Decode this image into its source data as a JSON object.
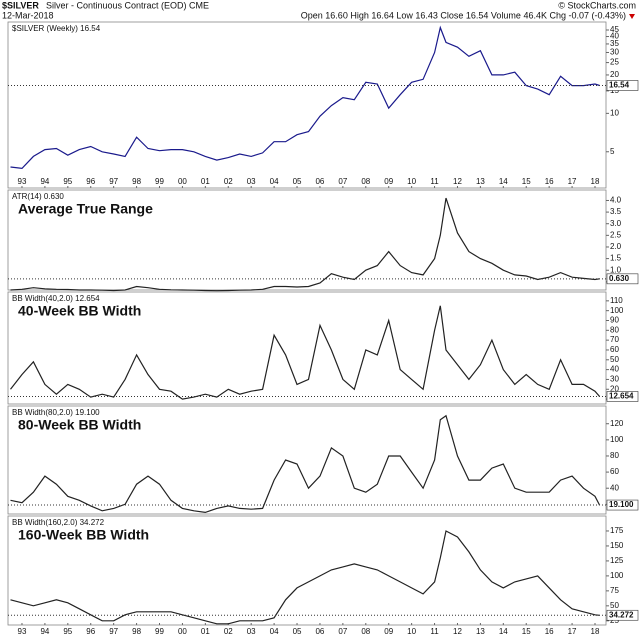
{
  "header": {
    "symbol": "$SILVER",
    "name": "Silver - Continuous Contract (EOD) CME",
    "date": "12-Mar-2018",
    "quote": "Open 16.60 High 16.64 Low 16.43 Close 16.54 Volume 46.4K Chg -0.07 (-0.43%)",
    "source": "© StockCharts.com"
  },
  "chart_data": [
    {
      "type": "line",
      "subtitle": "$SILVER (Weekly) 16.54",
      "last_label": "16.54",
      "log_scale": true,
      "color": "#1a1a8c",
      "xlim": [
        1992.39,
        2018.48
      ],
      "ylim": [
        2.6,
        52
      ],
      "yticks": [
        5,
        10,
        15,
        20,
        25,
        30,
        35,
        40,
        45
      ],
      "xticks": [
        {
          "value": 1993,
          "label": "93"
        },
        {
          "value": 1994,
          "label": "94"
        },
        {
          "value": 1995,
          "label": "95"
        },
        {
          "value": 1996,
          "label": "96"
        },
        {
          "value": 1997,
          "label": "97"
        },
        {
          "value": 1998,
          "label": "98"
        },
        {
          "value": 1999,
          "label": "99"
        },
        {
          "value": 2000,
          "label": "00"
        },
        {
          "value": 2001,
          "label": "01"
        },
        {
          "value": 2002,
          "label": "02"
        },
        {
          "value": 2003,
          "label": "03"
        },
        {
          "value": 2004,
          "label": "04"
        },
        {
          "value": 2005,
          "label": "05"
        },
        {
          "value": 2006,
          "label": "06"
        },
        {
          "value": 2007,
          "label": "07"
        },
        {
          "value": 2008,
          "label": "08"
        },
        {
          "value": 2009,
          "label": "09"
        },
        {
          "value": 2010,
          "label": "10"
        },
        {
          "value": 2011,
          "label": "11"
        },
        {
          "value": 2012,
          "label": "12"
        },
        {
          "value": 2013,
          "label": "13"
        },
        {
          "value": 2014,
          "label": "14"
        },
        {
          "value": 2015,
          "label": "15"
        },
        {
          "value": 2016,
          "label": "16"
        },
        {
          "value": 2017,
          "label": "17"
        },
        {
          "value": 2018,
          "label": "18"
        }
      ],
      "x": [
        1992.5,
        1993,
        1993.5,
        1994,
        1994.5,
        1995,
        1995.5,
        1996,
        1996.5,
        1997,
        1997.5,
        1998,
        1998.5,
        1999,
        1999.5,
        2000,
        2000.5,
        2001,
        2001.5,
        2002,
        2002.5,
        2003,
        2003.5,
        2004,
        2004.5,
        2005,
        2005.5,
        2006,
        2006.5,
        2007,
        2007.5,
        2008,
        2008.5,
        2009,
        2009.5,
        2010,
        2010.5,
        2011,
        2011.25,
        2011.5,
        2012,
        2012.5,
        2013,
        2013.5,
        2014,
        2014.5,
        2015,
        2015.5,
        2016,
        2016.5,
        2017,
        2017.5,
        2018,
        2018.2
      ],
      "values": [
        3.8,
        3.7,
        4.6,
        5.2,
        5.3,
        4.7,
        5.2,
        5.5,
        5.0,
        4.8,
        4.6,
        6.5,
        5.3,
        5.1,
        5.2,
        5.2,
        5.0,
        4.6,
        4.3,
        4.5,
        4.8,
        4.6,
        4.9,
        6.0,
        6.0,
        6.8,
        7.2,
        9.5,
        11.5,
        13.3,
        12.8,
        17.5,
        17.0,
        11.0,
        14.0,
        17.5,
        18.5,
        30,
        47,
        36,
        33,
        28,
        31,
        20,
        20,
        21,
        16.5,
        15.5,
        14,
        19.5,
        16.5,
        16.5,
        17,
        16.54
      ]
    },
    {
      "type": "line",
      "title": "Average True Range",
      "subtitle": "ATR(14) 0.630",
      "last_label": "0.630",
      "color": "#222",
      "xlim": [
        1992.39,
        2018.48
      ],
      "ylim": [
        0.15,
        4.45
      ],
      "yticks": [
        0.5,
        {
          "value": 1,
          "label": "1.0"
        },
        1.5,
        {
          "value": 2,
          "label": "2.0"
        },
        2.5,
        {
          "value": 3,
          "label": "3.0"
        },
        3.5,
        {
          "value": 4,
          "label": "4.0"
        }
      ],
      "x": [
        1992.5,
        1993,
        1993.5,
        1994,
        1994.5,
        1995,
        1995.5,
        1996,
        1996.5,
        1997,
        1997.5,
        1998,
        1998.5,
        1999,
        1999.5,
        2000,
        2000.5,
        2001,
        2001.5,
        2002,
        2002.5,
        2003,
        2003.5,
        2004,
        2004.5,
        2005,
        2005.5,
        2006,
        2006.5,
        2007,
        2007.5,
        2008,
        2008.5,
        2009,
        2009.5,
        2010,
        2010.5,
        2011,
        2011.25,
        2011.5,
        2012,
        2012.5,
        2013,
        2013.5,
        2014,
        2014.5,
        2015,
        2015.5,
        2016,
        2016.5,
        2017,
        2017.5,
        2018,
        2018.2
      ],
      "values": [
        0.15,
        0.18,
        0.25,
        0.2,
        0.18,
        0.17,
        0.15,
        0.15,
        0.14,
        0.13,
        0.15,
        0.3,
        0.25,
        0.18,
        0.16,
        0.15,
        0.14,
        0.13,
        0.12,
        0.13,
        0.14,
        0.15,
        0.18,
        0.3,
        0.3,
        0.28,
        0.3,
        0.45,
        0.85,
        0.7,
        0.6,
        1.0,
        1.2,
        1.8,
        1.2,
        0.9,
        0.8,
        1.5,
        2.5,
        4.1,
        2.6,
        1.8,
        1.5,
        1.3,
        1.0,
        0.8,
        0.75,
        0.6,
        0.7,
        0.9,
        0.7,
        0.65,
        0.6,
        0.63
      ]
    },
    {
      "type": "line",
      "title": "40-Week BB Width",
      "subtitle": "BB Width(40,2.0) 12.654",
      "last_label": "12.654",
      "color": "#222",
      "xlim": [
        1992.39,
        2018.48
      ],
      "ylim": [
        5,
        119
      ],
      "yticks": [
        10,
        20,
        30,
        40,
        50,
        60,
        70,
        80,
        90,
        100,
        110
      ],
      "x": [
        1992.5,
        1993,
        1993.5,
        1994,
        1994.5,
        1995,
        1995.5,
        1996,
        1996.5,
        1997,
        1997.5,
        1998,
        1998.5,
        1999,
        1999.5,
        2000,
        2000.5,
        2001,
        2001.5,
        2002,
        2002.5,
        2003,
        2003.5,
        2004,
        2004.5,
        2005,
        2005.5,
        2006,
        2006.5,
        2007,
        2007.5,
        2008,
        2008.5,
        2009,
        2009.5,
        2010,
        2010.5,
        2011,
        2011.25,
        2011.5,
        2012,
        2012.5,
        2013,
        2013.5,
        2014,
        2014.5,
        2015,
        2015.5,
        2016,
        2016.5,
        2017,
        2017.5,
        2018,
        2018.2
      ],
      "values": [
        20,
        35,
        48,
        25,
        15,
        25,
        20,
        12,
        15,
        12,
        30,
        55,
        35,
        20,
        18,
        10,
        12,
        15,
        12,
        20,
        15,
        18,
        20,
        75,
        55,
        25,
        30,
        85,
        60,
        30,
        20,
        60,
        55,
        90,
        40,
        30,
        20,
        80,
        105,
        60,
        45,
        30,
        45,
        70,
        40,
        25,
        35,
        25,
        20,
        50,
        25,
        25,
        18,
        12.654
      ]
    },
    {
      "type": "line",
      "title": "80-Week BB Width",
      "subtitle": "BB Width(80,2.0) 19.100",
      "last_label": "19.100",
      "color": "#222",
      "xlim": [
        1992.39,
        2018.48
      ],
      "ylim": [
        8,
        142
      ],
      "yticks": [
        20,
        40,
        60,
        80,
        100,
        120
      ],
      "x": [
        1992.5,
        1993,
        1993.5,
        1994,
        1994.5,
        1995,
        1995.5,
        1996,
        1996.5,
        1997,
        1997.5,
        1998,
        1998.5,
        1999,
        1999.5,
        2000,
        2000.5,
        2001,
        2001.5,
        2002,
        2002.5,
        2003,
        2003.5,
        2004,
        2004.5,
        2005,
        2005.5,
        2006,
        2006.5,
        2007,
        2007.5,
        2008,
        2008.5,
        2009,
        2009.5,
        2010,
        2010.5,
        2011,
        2011.25,
        2011.5,
        2012,
        2012.5,
        2013,
        2013.5,
        2014,
        2014.5,
        2015,
        2015.5,
        2016,
        2016.5,
        2017,
        2017.5,
        2018,
        2018.2
      ],
      "values": [
        25,
        22,
        35,
        55,
        45,
        30,
        25,
        18,
        12,
        15,
        20,
        45,
        55,
        45,
        25,
        15,
        12,
        10,
        15,
        18,
        15,
        14,
        15,
        50,
        75,
        70,
        40,
        55,
        90,
        80,
        40,
        35,
        45,
        80,
        80,
        60,
        40,
        75,
        125,
        130,
        80,
        50,
        50,
        65,
        70,
        40,
        35,
        35,
        35,
        50,
        55,
        40,
        30,
        19.1
      ]
    },
    {
      "type": "line",
      "title": "160-Week BB Width",
      "subtitle": "BB Width(160,2.0) 34.272",
      "last_label": "34.272",
      "color": "#222",
      "xlim": [
        1992.39,
        2018.48
      ],
      "ylim": [
        18,
        200
      ],
      "yticks": [
        25,
        50,
        75,
        100,
        125,
        150,
        175
      ],
      "xticks": [
        {
          "value": 1993,
          "label": "93"
        },
        {
          "value": 1994,
          "label": "94"
        },
        {
          "value": 1995,
          "label": "95"
        },
        {
          "value": 1996,
          "label": "96"
        },
        {
          "value": 1997,
          "label": "97"
        },
        {
          "value": 1998,
          "label": "98"
        },
        {
          "value": 1999,
          "label": "99"
        },
        {
          "value": 2000,
          "label": "00"
        },
        {
          "value": 2001,
          "label": "01"
        },
        {
          "value": 2002,
          "label": "02"
        },
        {
          "value": 2003,
          "label": "03"
        },
        {
          "value": 2004,
          "label": "04"
        },
        {
          "value": 2005,
          "label": "05"
        },
        {
          "value": 2006,
          "label": "06"
        },
        {
          "value": 2007,
          "label": "07"
        },
        {
          "value": 2008,
          "label": "08"
        },
        {
          "value": 2009,
          "label": "09"
        },
        {
          "value": 2010,
          "label": "10"
        },
        {
          "value": 2011,
          "label": "11"
        },
        {
          "value": 2012,
          "label": "12"
        },
        {
          "value": 2013,
          "label": "13"
        },
        {
          "value": 2014,
          "label": "14"
        },
        {
          "value": 2015,
          "label": "15"
        },
        {
          "value": 2016,
          "label": "16"
        },
        {
          "value": 2017,
          "label": "17"
        },
        {
          "value": 2018,
          "label": "18"
        }
      ],
      "x": [
        1992.5,
        1993,
        1993.5,
        1994,
        1994.5,
        1995,
        1995.5,
        1996,
        1996.5,
        1997,
        1997.5,
        1998,
        1998.5,
        1999,
        1999.5,
        2000,
        2000.5,
        2001,
        2001.5,
        2002,
        2002.5,
        2003,
        2003.5,
        2004,
        2004.5,
        2005,
        2005.5,
        2006,
        2006.5,
        2007,
        2007.5,
        2008,
        2008.5,
        2009,
        2009.5,
        2010,
        2010.5,
        2011,
        2011.25,
        2011.5,
        2012,
        2012.5,
        2013,
        2013.5,
        2014,
        2014.5,
        2015,
        2015.5,
        2016,
        2016.5,
        2017,
        2017.5,
        2018,
        2018.2
      ],
      "values": [
        60,
        55,
        50,
        55,
        60,
        55,
        45,
        35,
        25,
        25,
        35,
        40,
        40,
        40,
        40,
        35,
        30,
        25,
        20,
        20,
        25,
        25,
        25,
        30,
        60,
        80,
        90,
        100,
        110,
        115,
        120,
        115,
        110,
        100,
        90,
        80,
        70,
        90,
        130,
        175,
        165,
        140,
        110,
        90,
        80,
        90,
        95,
        100,
        80,
        60,
        45,
        40,
        35,
        34.272
      ]
    }
  ]
}
